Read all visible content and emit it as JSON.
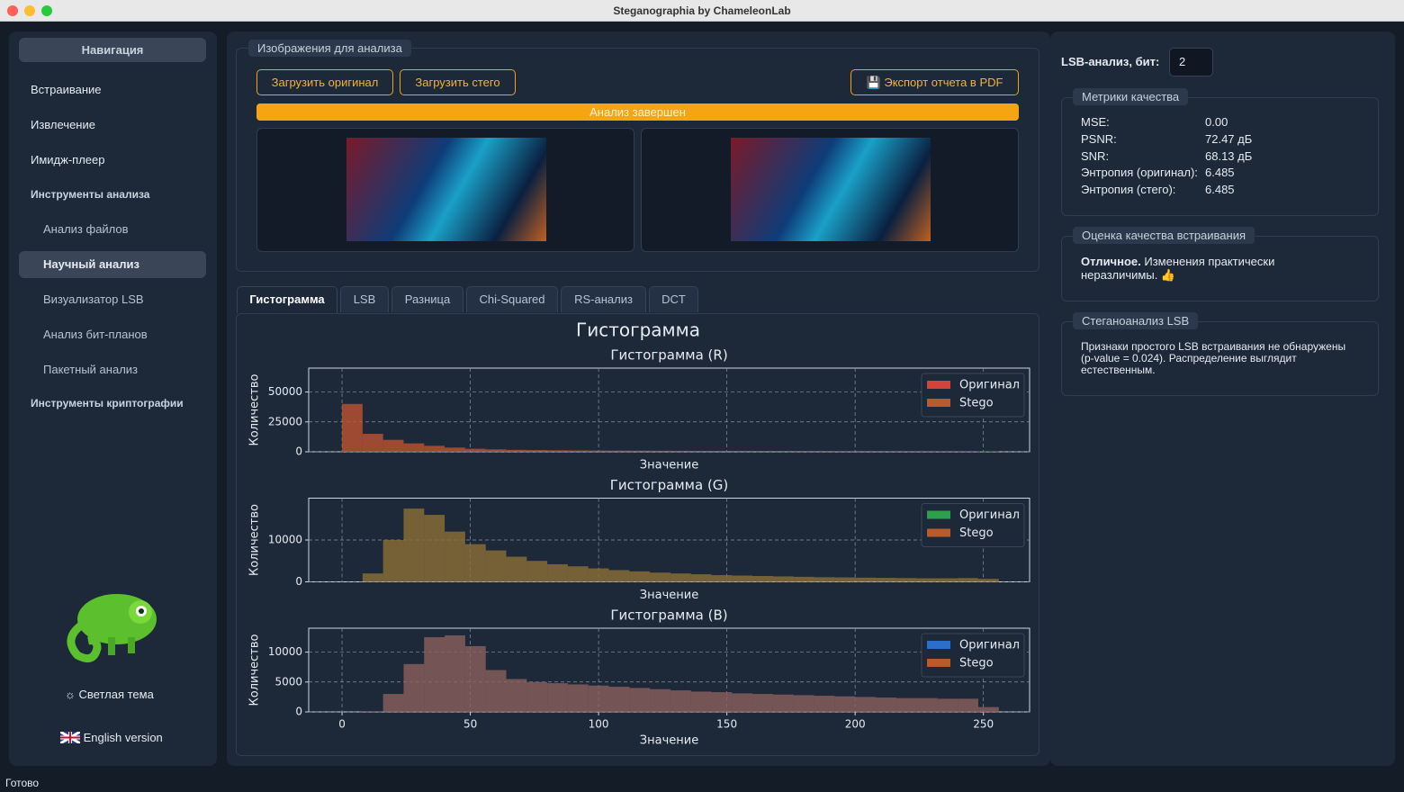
{
  "window": {
    "title": "Steganographia by ChameleonLab"
  },
  "sidebar": {
    "header": "Навигация",
    "items": [
      "Встраивание",
      "Извлечение",
      "Имидж-плеер",
      "Инструменты анализа",
      "Анализ файлов",
      "Научный анализ",
      "Визуализатор LSB",
      "Анализ бит-планов",
      "Пакетный анализ",
      "Инструменты криптографии"
    ],
    "theme": "Светлая тема",
    "language": "English version"
  },
  "images_panel": {
    "title": "Изображения для анализа",
    "buttons": [
      "Загрузить оригинал",
      "Загрузить стего"
    ],
    "export": "Экспорт отчета в PDF",
    "progress": "Анализ завершен"
  },
  "tabs": [
    "Гистограмма",
    "LSB",
    "Разница",
    "Chi-Squared",
    "RS-анализ",
    "DCT"
  ],
  "histogram_title": "Гистограмма",
  "chart_data": [
    {
      "type": "histogram",
      "title": "Гистограмма (R)",
      "xlabel": "Значение",
      "ylabel": "Количество",
      "bins": [
        0,
        8,
        16,
        24,
        32,
        40,
        48,
        56,
        64,
        72,
        80,
        88,
        96,
        104,
        112,
        120,
        128,
        136,
        144,
        152,
        160,
        168,
        176,
        184,
        192,
        200,
        208,
        216,
        224,
        232,
        240,
        248,
        256
      ],
      "series": [
        {
          "name": "Оригинал",
          "color": "#d0443a",
          "values": [
            40000,
            15000,
            10000,
            7000,
            5000,
            3500,
            2500,
            2000,
            1600,
            1400,
            1200,
            1100,
            1000,
            950,
            900,
            850,
            800,
            780,
            760,
            740,
            720,
            700,
            680,
            660,
            640,
            620,
            600,
            580,
            560,
            540,
            520,
            300
          ]
        },
        {
          "name": "Stego",
          "color": "#b85a2c",
          "values": [
            40000,
            15000,
            10000,
            7000,
            5000,
            3500,
            2500,
            2000,
            1600,
            1400,
            1200,
            1100,
            1000,
            950,
            900,
            850,
            800,
            780,
            760,
            740,
            720,
            700,
            680,
            660,
            640,
            620,
            600,
            580,
            560,
            540,
            520,
            300
          ]
        }
      ],
      "xlim": [
        -13,
        268
      ],
      "ylim": [
        0,
        70000
      ],
      "xticks": [
        0,
        50,
        100,
        150,
        200,
        250
      ],
      "yticks": [
        0,
        25000,
        50000
      ],
      "xtick_labels": false,
      "grid": true,
      "legend": "upper right"
    },
    {
      "type": "histogram",
      "title": "Гистограмма (G)",
      "xlabel": "Значение",
      "ylabel": "Количество",
      "bins": [
        0,
        8,
        16,
        24,
        32,
        40,
        48,
        56,
        64,
        72,
        80,
        88,
        96,
        104,
        112,
        120,
        128,
        136,
        144,
        152,
        160,
        168,
        176,
        184,
        192,
        200,
        208,
        216,
        224,
        232,
        240,
        248,
        256
      ],
      "series": [
        {
          "name": "Оригинал",
          "color": "#2e9e4f",
          "values": [
            0,
            2000,
            10000,
            17500,
            16000,
            12000,
            9000,
            7500,
            6000,
            5000,
            4200,
            3700,
            3200,
            2800,
            2500,
            2200,
            2000,
            1800,
            1600,
            1500,
            1400,
            1300,
            1200,
            1100,
            1050,
            1000,
            950,
            900,
            850,
            850,
            900,
            700
          ]
        },
        {
          "name": "Stego",
          "color": "#b85a2c",
          "values": [
            0,
            2000,
            10000,
            17500,
            16000,
            12000,
            9000,
            7500,
            6000,
            5000,
            4200,
            3700,
            3200,
            2800,
            2500,
            2200,
            2000,
            1800,
            1600,
            1500,
            1400,
            1300,
            1200,
            1100,
            1050,
            1000,
            950,
            900,
            850,
            850,
            900,
            700
          ]
        }
      ],
      "xlim": [
        -13,
        268
      ],
      "ylim": [
        0,
        20000
      ],
      "xticks": [
        0,
        50,
        100,
        150,
        200,
        250
      ],
      "yticks": [
        0,
        10000
      ],
      "xtick_labels": false,
      "grid": true,
      "legend": "upper right"
    },
    {
      "type": "histogram",
      "title": "Гистограмма (B)",
      "xlabel": "Значение",
      "ylabel": "Количество",
      "bins": [
        0,
        8,
        16,
        24,
        32,
        40,
        48,
        56,
        64,
        72,
        80,
        88,
        96,
        104,
        112,
        120,
        128,
        136,
        144,
        152,
        160,
        168,
        176,
        184,
        192,
        200,
        208,
        216,
        224,
        232,
        240,
        248,
        256
      ],
      "series": [
        {
          "name": "Оригинал",
          "color": "#2a6fc9",
          "values": [
            0,
            100,
            3000,
            8000,
            12500,
            12800,
            11000,
            7000,
            5500,
            5000,
            4800,
            4600,
            4400,
            4200,
            4000,
            3800,
            3600,
            3400,
            3300,
            3100,
            3000,
            2900,
            2800,
            2700,
            2600,
            2500,
            2400,
            2300,
            2300,
            2200,
            2200,
            800
          ]
        },
        {
          "name": "Stego",
          "color": "#b85a2c",
          "values": [
            0,
            100,
            3000,
            8000,
            12500,
            12800,
            11000,
            7000,
            5500,
            5000,
            4800,
            4600,
            4400,
            4200,
            4000,
            3800,
            3600,
            3400,
            3300,
            3100,
            3000,
            2900,
            2800,
            2700,
            2600,
            2500,
            2400,
            2300,
            2300,
            2200,
            2200,
            800
          ]
        }
      ],
      "xlim": [
        -13,
        268
      ],
      "ylim": [
        0,
        14000
      ],
      "xticks": [
        0,
        50,
        100,
        150,
        200,
        250
      ],
      "yticks": [
        0,
        5000,
        10000
      ],
      "xtick_labels": true,
      "grid": true,
      "legend": "upper right"
    }
  ],
  "lsb_setting": {
    "label": "LSB-анализ, бит:",
    "value": "2"
  },
  "metrics": {
    "title": "Метрики качества",
    "rows": [
      [
        "MSE:",
        "0.00"
      ],
      [
        "PSNR:",
        "72.47 дБ"
      ],
      [
        "SNR:",
        "68.13 дБ"
      ],
      [
        "Энтропия (оригинал):",
        "6.485"
      ],
      [
        "Энтропия (стего):",
        "6.485"
      ]
    ]
  },
  "quality": {
    "title": "Оценка качества встраивания",
    "verdict": "Отличное.",
    "text": "Изменения практически неразличимы. 👍"
  },
  "steganalysis": {
    "title": "Стеганоанализ LSB",
    "text": "Признаки простого LSB встраивания не обнаружены (p-value = 0.024). Распределение выглядит естественным."
  },
  "status": "Готово"
}
